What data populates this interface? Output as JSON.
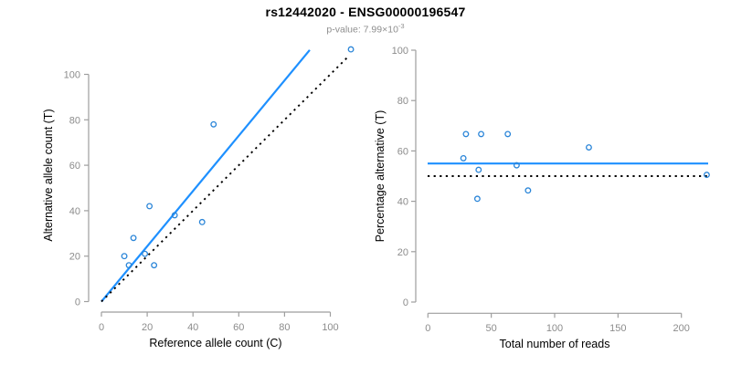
{
  "title": "rs12442020 - ENSG00000196547",
  "subtitle": {
    "prefix": "p-value: 7.99×10",
    "exponent": "-3"
  },
  "colors": {
    "line_blue": "#1E90FF",
    "point_blue": "#2A85D8",
    "identity_black": "#000000",
    "axis_gray": "#9e9e9e",
    "tick_label_gray": "#8c8c8c",
    "subtitle_gray": "#8e8e8e"
  },
  "chart_data": [
    {
      "type": "scatter",
      "name": "allele-counts",
      "xlabel": "Reference allele count (C)",
      "ylabel": "Alternative allele count (T)",
      "xlim": [
        0,
        110
      ],
      "ylim": [
        0,
        112
      ],
      "xticks": [
        0,
        20,
        40,
        60,
        80,
        100
      ],
      "yticks": [
        0,
        20,
        40,
        60,
        80,
        100
      ],
      "grid": false,
      "points": [
        [
          10,
          20
        ],
        [
          12,
          16
        ],
        [
          14,
          28
        ],
        [
          19,
          21
        ],
        [
          21,
          42
        ],
        [
          23,
          16
        ],
        [
          32,
          38
        ],
        [
          44,
          35
        ],
        [
          49,
          78
        ],
        [
          109,
          111
        ]
      ],
      "lines": [
        {
          "name": "fit-line",
          "style": "solid",
          "color_key": "line_blue",
          "x1": 0,
          "y1": 0,
          "x2": 91,
          "y2": 110.7
        },
        {
          "name": "identity-line",
          "style": "dotted",
          "color_key": "identity_black",
          "x1": 0,
          "y1": 0,
          "x2": 108,
          "y2": 108
        }
      ]
    },
    {
      "type": "scatter",
      "name": "percentage-vs-coverage",
      "xlabel": "Total number of reads",
      "ylabel": "Percentage alternative (T)",
      "xlim": [
        0,
        222
      ],
      "ylim": [
        0,
        100
      ],
      "xticks": [
        0,
        50,
        100,
        150,
        200
      ],
      "yticks": [
        0,
        20,
        40,
        60,
        80,
        100
      ],
      "grid": false,
      "points": [
        [
          28,
          57.1
        ],
        [
          30,
          66.7
        ],
        [
          39,
          41.0
        ],
        [
          40,
          52.5
        ],
        [
          42,
          66.7
        ],
        [
          63,
          66.7
        ],
        [
          70,
          54.3
        ],
        [
          79,
          44.3
        ],
        [
          127,
          61.4
        ],
        [
          220,
          50.5
        ]
      ],
      "hlines": [
        {
          "name": "mean-percentage-line",
          "style": "solid",
          "color_key": "line_blue",
          "y": 55
        },
        {
          "name": "fifty-percent-line",
          "style": "dotted",
          "color_key": "identity_black",
          "y": 50
        }
      ]
    }
  ]
}
